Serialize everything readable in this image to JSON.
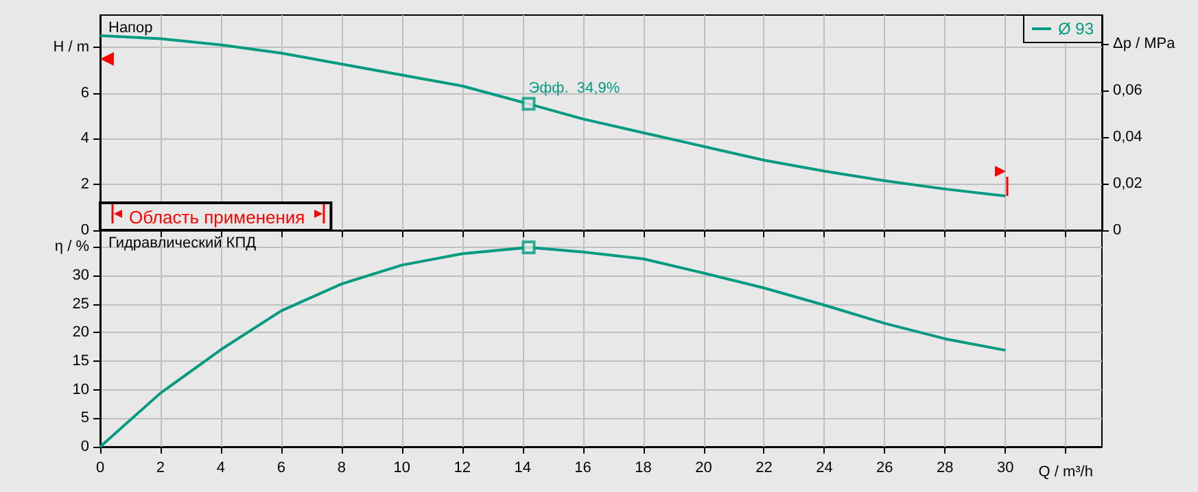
{
  "chart_data": [
    {
      "type": "line",
      "title": "Напор",
      "ylabel": "H / m",
      "y2label": "Δp / MPa",
      "xlim": [
        0,
        33.2
      ],
      "xticks": [
        0,
        2,
        4,
        6,
        8,
        10,
        12,
        14,
        16,
        18,
        20,
        22,
        24,
        26,
        28,
        30,
        {
          "value": 32,
          "label": null
        }
      ],
      "ylim": [
        0,
        9.4
      ],
      "yticks": [
        0,
        2,
        4,
        6,
        {
          "value": 8,
          "label": null
        }
      ],
      "y2lim": [
        0,
        0.0922
      ],
      "y2ticks": [
        0,
        {
          "value": 0.02,
          "label": "0,02"
        },
        {
          "value": 0.04,
          "label": "0,04"
        },
        {
          "value": 0.06,
          "label": "0,06"
        },
        {
          "value": 0.08,
          "label": null
        }
      ],
      "tick_labels": "y",
      "grid": true,
      "legend": "top right",
      "line_style": "solid",
      "series": [
        {
          "name": "Ø 93",
          "color": "#009a80",
          "marker": "none",
          "x": [
            0,
            2,
            4,
            6,
            8,
            10,
            12,
            14.2,
            16,
            18,
            20,
            22,
            24,
            26,
            28,
            30
          ],
          "values": [
            8.5,
            8.37,
            8.1,
            7.74,
            7.26,
            6.78,
            6.3,
            5.52,
            4.86,
            4.26,
            3.66,
            3.06,
            2.58,
            2.16,
            1.8,
            1.5
          ]
        },
        {
          "type": "scatter",
          "color": "#009a80",
          "marker": "square",
          "x": [
            14.2
          ],
          "values": [
            5.52
          ]
        }
      ],
      "annotations": [
        {
          "text": "Эфф.  34,9%",
          "x": 14.2,
          "y": 5.52
        },
        "Область применения"
      ]
    },
    {
      "type": "line",
      "title": "Гидравлический КПД",
      "ylabel": "η / %",
      "xlabel": "Q / m³/h",
      "xlim": [
        0,
        33.2
      ],
      "xticks": [
        0,
        2,
        4,
        6,
        8,
        10,
        12,
        14,
        16,
        18,
        20,
        22,
        24,
        26,
        28,
        30,
        {
          "value": 32,
          "label": null
        }
      ],
      "ylim": [
        0,
        37.9
      ],
      "yticks": [
        0,
        5,
        10,
        15,
        20,
        25,
        30,
        {
          "value": 35,
          "label": null
        }
      ],
      "grid": true,
      "line_style": "solid",
      "series": [
        {
          "color": "#009a80",
          "marker": "none",
          "x": [
            0,
            2,
            4,
            6,
            8,
            10,
            12,
            14.2,
            16,
            18,
            20,
            22,
            24,
            26,
            28,
            30
          ],
          "values": [
            0,
            9.4,
            17.0,
            23.8,
            28.5,
            31.8,
            33.8,
            34.9,
            34.1,
            32.9,
            30.4,
            27.8,
            24.8,
            21.6,
            18.9,
            16.9
          ]
        },
        {
          "type": "scatter",
          "color": "#009a80",
          "marker": "square",
          "x": [
            14.2
          ],
          "values": [
            34.9
          ]
        }
      ]
    }
  ]
}
